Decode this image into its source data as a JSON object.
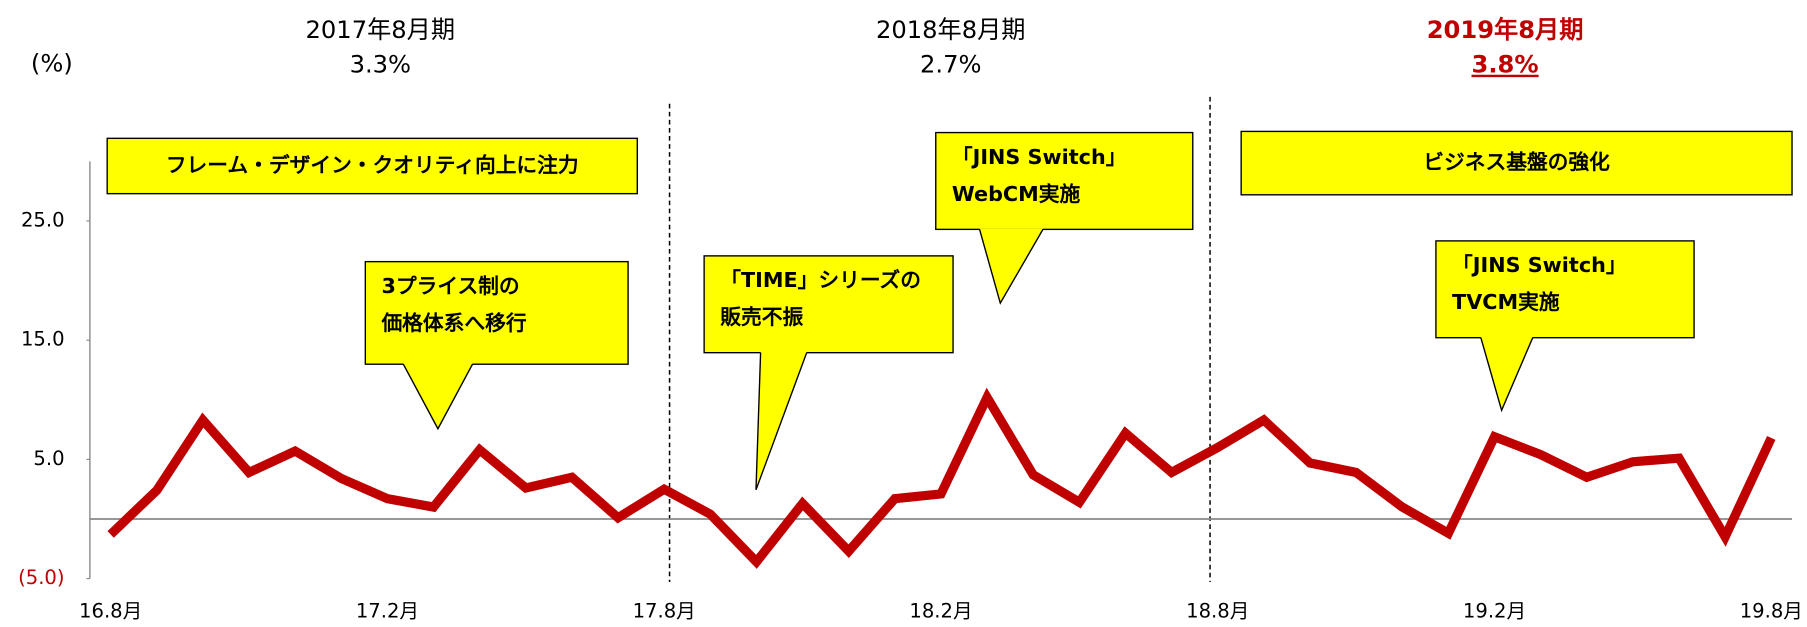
{
  "chart_data": {
    "type": "line",
    "y_axis_label": "(%)",
    "categories": [
      "16.8月",
      null,
      null,
      null,
      null,
      null,
      "17.2月",
      null,
      null,
      null,
      null,
      null,
      "17.8月",
      null,
      null,
      null,
      null,
      null,
      "18.2月",
      null,
      null,
      null,
      null,
      null,
      "18.8月",
      null,
      null,
      null,
      null,
      null,
      "19.2月",
      null,
      null,
      null,
      null,
      null,
      "19.8月"
    ],
    "values": [
      -1.3,
      2.4,
      8.3,
      3.9,
      5.7,
      3.4,
      1.7,
      1.0,
      5.8,
      2.6,
      3.5,
      0.1,
      2.5,
      0.4,
      -3.6,
      1.3,
      -2.7,
      1.7,
      2.1,
      10.2,
      3.7,
      1.4,
      7.2,
      3.9,
      6.0,
      8.3,
      4.7,
      3.9,
      1.0,
      -1.2,
      6.9,
      5.4,
      3.5,
      4.8,
      5.1,
      -1.5,
      6.8
    ],
    "color": "#c00000",
    "ylim": [
      -5,
      30
    ],
    "yticks": [
      {
        "value": -5,
        "label": "(5.0)"
      },
      {
        "value": 5,
        "label": "5.0"
      },
      {
        "value": 15,
        "label": "15.0"
      },
      {
        "value": 25,
        "label": "25.0"
      }
    ],
    "negative_tick_color": "#c00000",
    "periods": [
      {
        "title": "2017年8月期",
        "text": "3.3%",
        "color": "#000000"
      },
      {
        "title": "2018年8月期",
        "text": "2.7%",
        "color": "#000000"
      },
      {
        "title": "2019年8月期",
        "text": "3.8%",
        "color": "#c00000"
      }
    ],
    "annotations": [
      {
        "lines": [
          "フレーム・デザイン・クオリティ向上に注力"
        ]
      },
      {
        "lines": [
          "3プライス制の",
          "価格体系へ移行"
        ]
      },
      {
        "lines": [
          "「TIME」シリーズの",
          "販売不振"
        ]
      },
      {
        "lines": [
          "「JINS Switch」",
          "WebCM実施"
        ]
      },
      {
        "lines": [
          "ビジネス基盤の強化"
        ]
      },
      {
        "lines": [
          "「JINS Switch」",
          "TVCM実施"
        ]
      }
    ]
  }
}
